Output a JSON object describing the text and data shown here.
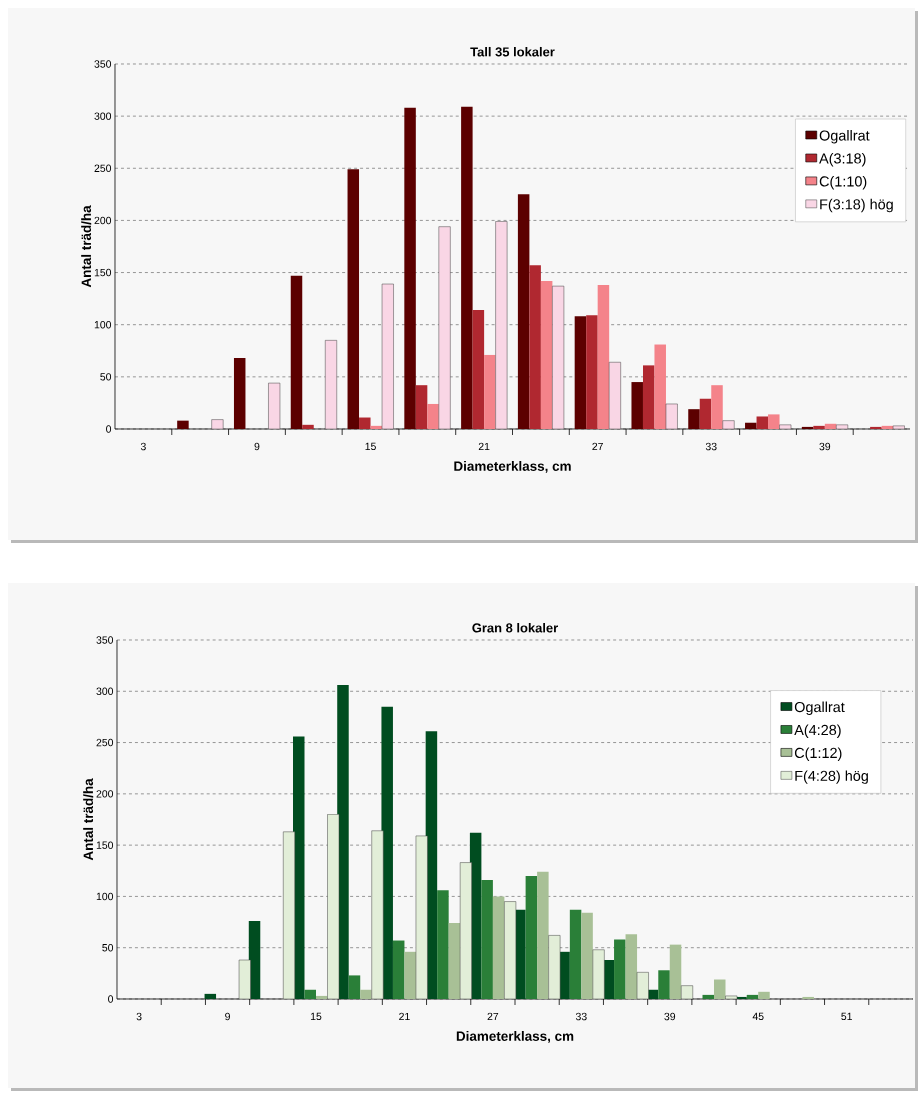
{
  "chart_data": [
    {
      "type": "bar",
      "title": "Tall 35 lokaler",
      "xlabel": "Diameterklass, cm",
      "ylabel": "Antal träd/ha",
      "categories": [
        "3",
        null,
        "9",
        null,
        "15",
        null,
        "21",
        null,
        "27",
        null,
        "33",
        null,
        "39",
        null
      ],
      "series": [
        {
          "name": "Ogallrat",
          "color": "#5c0000",
          "values": [
            null,
            8,
            68,
            147,
            249,
            308,
            309,
            225,
            108,
            45,
            19,
            6,
            2,
            null
          ]
        },
        {
          "name": "A(3:18)",
          "color": "#b02830",
          "values": [
            null,
            null,
            null,
            4,
            11,
            42,
            114,
            157,
            109,
            61,
            29,
            12,
            3,
            2
          ]
        },
        {
          "name": "C(1:10)",
          "color": "#f4838a",
          "values": [
            null,
            null,
            null,
            null,
            3,
            24,
            71,
            142,
            138,
            81,
            42,
            14,
            5,
            3
          ]
        },
        {
          "name": "F(3:18) hög",
          "color": "#f9d6e5",
          "values": [
            null,
            9,
            44,
            85,
            139,
            194,
            199,
            137,
            64,
            24,
            8,
            4,
            4,
            3
          ]
        }
      ],
      "ylim": [
        0,
        350
      ],
      "yticks": [
        0,
        50,
        100,
        150,
        200,
        250,
        300,
        350
      ],
      "grid": "y",
      "legend": "right"
    },
    {
      "type": "bar",
      "title": "Gran 8 lokaler",
      "xlabel": "Diameterklass, cm",
      "ylabel": "Antal träd/ha",
      "categories": [
        "3",
        null,
        "9",
        null,
        "15",
        null,
        "21",
        null,
        "27",
        null,
        "33",
        null,
        "39",
        null,
        "45",
        null,
        "51",
        null
      ],
      "series": [
        {
          "name": "Ogallrat",
          "color": "#004d20",
          "values": [
            null,
            null,
            5,
            76,
            256,
            306,
            285,
            261,
            162,
            87,
            46,
            38,
            9,
            null,
            2,
            null,
            null,
            null
          ]
        },
        {
          "name": "A(4:28)",
          "color": "#2a7f38",
          "values": [
            null,
            null,
            null,
            null,
            9,
            23,
            57,
            106,
            116,
            120,
            87,
            58,
            28,
            4,
            4,
            null,
            null,
            null
          ]
        },
        {
          "name": "C(1:12)",
          "color": "#a8c096",
          "values": [
            null,
            null,
            null,
            null,
            3,
            9,
            46,
            74,
            100,
            124,
            84,
            63,
            53,
            19,
            7,
            2,
            null,
            null
          ]
        },
        {
          "name": "F(4:28) hög",
          "color": "#e2eed8",
          "values": [
            null,
            null,
            38,
            163,
            180,
            164,
            159,
            133,
            95,
            62,
            48,
            26,
            13,
            3,
            null,
            null,
            null,
            null
          ]
        }
      ],
      "ylim": [
        0,
        350
      ],
      "yticks": [
        0,
        50,
        100,
        150,
        200,
        250,
        300,
        350
      ],
      "grid": "y",
      "legend": "right"
    }
  ]
}
